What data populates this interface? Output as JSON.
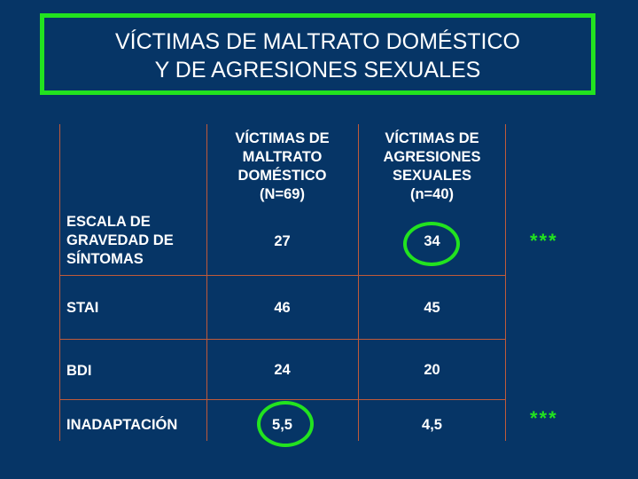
{
  "title": {
    "line1": "VÍCTIMAS DE MALTRATO DOMÉSTICO",
    "line2": "Y DE AGRESIONES SEXUALES"
  },
  "table": {
    "col_headers": [
      [
        "VÍCTIMAS DE",
        "MALTRATO",
        "DOMÉSTICO",
        "(N=69)"
      ],
      [
        "VÍCTIMAS DE",
        "AGRESIONES",
        "SEXUALES",
        "(n=40)"
      ]
    ],
    "rows": [
      {
        "label": [
          "ESCALA DE",
          "GRAVEDAD DE",
          "SÍNTOMAS"
        ],
        "values": [
          "27",
          "34"
        ],
        "marker": "***"
      },
      {
        "label": [
          "STAI"
        ],
        "values": [
          "46",
          "45"
        ],
        "marker": ""
      },
      {
        "label": [
          "BDI"
        ],
        "values": [
          "24",
          "20"
        ],
        "marker": ""
      },
      {
        "label": [
          "INADAPTACIÓN"
        ],
        "values": [
          "5,5",
          "4,5"
        ],
        "marker": "***"
      }
    ]
  },
  "colors": {
    "background": "#063566",
    "highlight": "#22e31f",
    "grid": "#c05a3a",
    "text": "#ffffff"
  }
}
